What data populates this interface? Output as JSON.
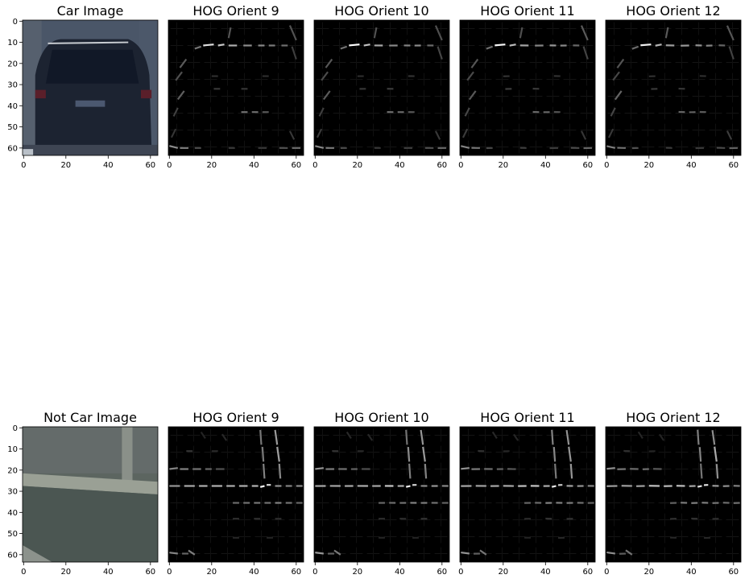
{
  "chart_data": [
    {
      "type": "image",
      "title": "Car Image",
      "kind": "photo",
      "scene": "car",
      "xlim": [
        0,
        63
      ],
      "ylim": [
        0,
        63
      ],
      "xticks": [
        "0",
        "20",
        "40",
        "60"
      ],
      "yticks": [
        "0",
        "10",
        "20",
        "30",
        "40",
        "50",
        "60"
      ]
    },
    {
      "type": "image",
      "title": "HOG Orient 9",
      "kind": "hog",
      "scene": "car",
      "orient": 9,
      "xlim": [
        0,
        63
      ],
      "ylim": [
        0,
        63
      ],
      "xticks": [
        "0",
        "20",
        "40",
        "60"
      ],
      "yticks": [
        "0",
        "10",
        "20",
        "30",
        "40",
        "50",
        "60"
      ]
    },
    {
      "type": "image",
      "title": "HOG Orient 10",
      "kind": "hog",
      "scene": "car",
      "orient": 10,
      "xlim": [
        0,
        63
      ],
      "ylim": [
        0,
        63
      ],
      "xticks": [
        "0",
        "20",
        "40",
        "60"
      ],
      "yticks": [
        "0",
        "10",
        "20",
        "30",
        "40",
        "50",
        "60"
      ]
    },
    {
      "type": "image",
      "title": "HOG Orient 11",
      "kind": "hog",
      "scene": "car",
      "orient": 11,
      "xlim": [
        0,
        63
      ],
      "ylim": [
        0,
        63
      ],
      "xticks": [
        "0",
        "20",
        "40",
        "60"
      ],
      "yticks": [
        "0",
        "10",
        "20",
        "30",
        "40",
        "50",
        "60"
      ]
    },
    {
      "type": "image",
      "title": "HOG Orient 12",
      "kind": "hog",
      "scene": "car",
      "orient": 12,
      "xlim": [
        0,
        63
      ],
      "ylim": [
        0,
        63
      ],
      "xticks": [
        "0",
        "20",
        "40",
        "60"
      ],
      "yticks": [
        "0",
        "10",
        "20",
        "30",
        "40",
        "50",
        "60"
      ]
    },
    {
      "type": "image",
      "title": "Not Car Image",
      "kind": "photo",
      "scene": "notcar",
      "xlim": [
        0,
        63
      ],
      "ylim": [
        0,
        63
      ],
      "xticks": [
        "0",
        "20",
        "40",
        "60"
      ],
      "yticks": [
        "0",
        "10",
        "20",
        "30",
        "40",
        "50",
        "60"
      ]
    },
    {
      "type": "image",
      "title": "HOG Orient 9",
      "kind": "hog",
      "scene": "notcar",
      "orient": 9,
      "xlim": [
        0,
        63
      ],
      "ylim": [
        0,
        63
      ],
      "xticks": [
        "0",
        "20",
        "40",
        "60"
      ],
      "yticks": [
        "0",
        "10",
        "20",
        "30",
        "40",
        "50",
        "60"
      ]
    },
    {
      "type": "image",
      "title": "HOG Orient 10",
      "kind": "hog",
      "scene": "notcar",
      "orient": 10,
      "xlim": [
        0,
        63
      ],
      "ylim": [
        0,
        63
      ],
      "xticks": [
        "0",
        "20",
        "40",
        "60"
      ],
      "yticks": [
        "0",
        "10",
        "20",
        "30",
        "40",
        "50",
        "60"
      ]
    },
    {
      "type": "image",
      "title": "HOG Orient 11",
      "kind": "hog",
      "scene": "notcar",
      "orient": 11,
      "xlim": [
        0,
        63
      ],
      "ylim": [
        0,
        63
      ],
      "xticks": [
        "0",
        "20",
        "40",
        "60"
      ],
      "yticks": [
        "0",
        "10",
        "20",
        "30",
        "40",
        "50",
        "60"
      ]
    },
    {
      "type": "image",
      "title": "HOG Orient 12",
      "kind": "hog",
      "scene": "notcar",
      "orient": 12,
      "xlim": [
        0,
        63
      ],
      "ylim": [
        0,
        63
      ],
      "xticks": [
        "0",
        "20",
        "40",
        "60"
      ],
      "yticks": [
        "0",
        "10",
        "20",
        "30",
        "40",
        "50",
        "60"
      ]
    }
  ]
}
